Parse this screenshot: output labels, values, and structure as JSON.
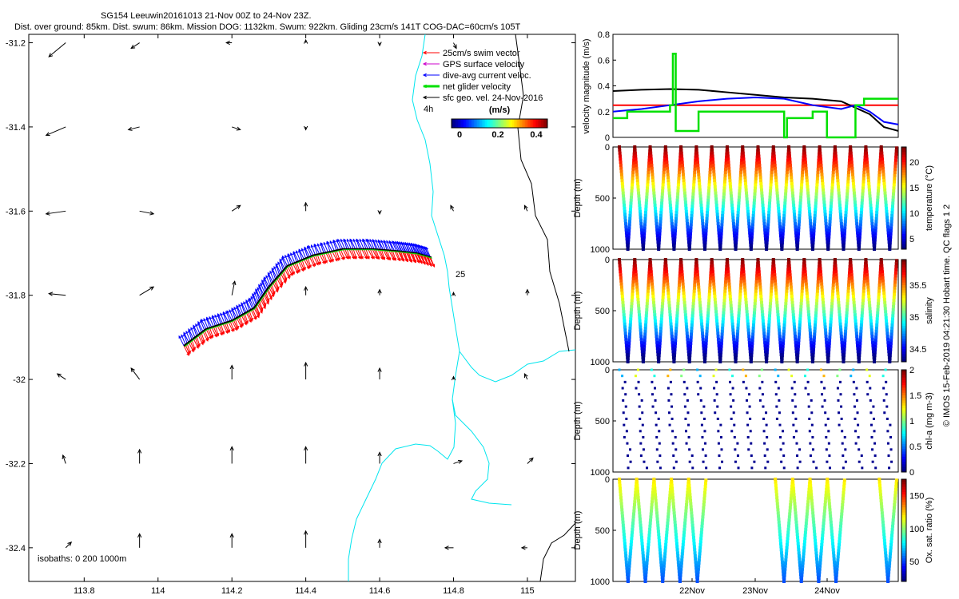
{
  "header": {
    "line1": "SG154 Leeuwin20161013 21-Nov 00Z to 24-Nov 23Z.",
    "line2": "Dist. over ground: 85km. Dist. swum: 86km. Mission DOG: 1132km. Swum: 922km. Gliding 23cm/s 141T COG-DAC=60cm/s 105T"
  },
  "side_note": "© IMOS 15-Feb-2019 04:21:30 Hobart time. QC flags 1  2",
  "colors": {
    "swim": "#ff0000",
    "gps": "#cc00cc",
    "dac": "#0000ff",
    "net": "#00e000",
    "sfc": "#000000",
    "coast": "#00e5ee",
    "isobath": "#000000"
  },
  "chart_data": [
    {
      "type": "map",
      "name": "track-map",
      "xlim": [
        113.65,
        115.13
      ],
      "ylim": [
        -32.48,
        -31.18
      ],
      "xticks": [
        113.8,
        114,
        114.2,
        114.4,
        114.6,
        114.8,
        115
      ],
      "xtick_labels": [
        "113.8",
        "114",
        "114.2",
        "114.4",
        "114.6",
        "114.8",
        "115"
      ],
      "yticks": [
        -31.2,
        -31.4,
        -31.6,
        -31.8,
        -32,
        -32.2,
        -32.4
      ],
      "ytick_labels": [
        "-31.2",
        "-31.4",
        "-31.6",
        "-31.8",
        "-32",
        "-32.2",
        "-32.4"
      ],
      "legend": [
        {
          "label": "25cm/s swim vector",
          "color": "#ff0000"
        },
        {
          "label": "GPS surface velocity",
          "color": "#cc00cc"
        },
        {
          "label": "dive-avg current veloc.",
          "color": "#0000ff"
        },
        {
          "label": "net glider velocity",
          "color": "#00e000"
        },
        {
          "label": "sfc geo. vel. 24-Nov-2016",
          "color": "#000000"
        }
      ],
      "colorbar": {
        "label": "(m/s)",
        "ticks": [
          0,
          0.2,
          0.4
        ],
        "tick_labels": [
          "0",
          "0.2",
          "0.4"
        ],
        "range": [
          0,
          0.5
        ]
      },
      "annotations": [
        "4h",
        "25"
      ],
      "isobath_label": "isobaths: 0   200  1000m",
      "track": [
        [
          114.07,
          -31.92
        ],
        [
          114.13,
          -31.88
        ],
        [
          114.2,
          -31.86
        ],
        [
          114.26,
          -31.83
        ],
        [
          114.3,
          -31.78
        ],
        [
          114.35,
          -31.73
        ],
        [
          114.42,
          -31.705
        ],
        [
          114.5,
          -31.69
        ],
        [
          114.58,
          -31.69
        ],
        [
          114.65,
          -31.695
        ],
        [
          114.7,
          -31.7
        ],
        [
          114.74,
          -31.71
        ]
      ],
      "sfc_arrows": [
        {
          "lon": 113.75,
          "lat": -31.2,
          "u": -0.3,
          "v": -0.25
        },
        {
          "lon": 113.95,
          "lat": -31.2,
          "u": -0.15,
          "v": -0.1
        },
        {
          "lon": 114.2,
          "lat": -31.2,
          "u": -0.1,
          "v": 0.0
        },
        {
          "lon": 114.4,
          "lat": -31.2,
          "u": 0.0,
          "v": 0.05
        },
        {
          "lon": 114.6,
          "lat": -31.2,
          "u": 0.0,
          "v": -0.05
        },
        {
          "lon": 114.8,
          "lat": -31.2,
          "u": 0.05,
          "v": -0.1
        },
        {
          "lon": 113.75,
          "lat": -31.4,
          "u": -0.35,
          "v": -0.15
        },
        {
          "lon": 113.95,
          "lat": -31.4,
          "u": -0.2,
          "v": -0.05
        },
        {
          "lon": 114.2,
          "lat": -31.4,
          "u": 0.15,
          "v": -0.05
        },
        {
          "lon": 114.4,
          "lat": -31.4,
          "u": 0.0,
          "v": -0.05
        },
        {
          "lon": 114.6,
          "lat": -31.4,
          "u": 0.0,
          "v": 0.0
        },
        {
          "lon": 113.75,
          "lat": -31.6,
          "u": -0.35,
          "v": -0.05
        },
        {
          "lon": 113.95,
          "lat": -31.6,
          "u": 0.25,
          "v": -0.05
        },
        {
          "lon": 114.2,
          "lat": -31.6,
          "u": 0.15,
          "v": 0.1
        },
        {
          "lon": 114.4,
          "lat": -31.6,
          "u": 0.0,
          "v": 0.15
        },
        {
          "lon": 114.6,
          "lat": -31.6,
          "u": 0.0,
          "v": -0.05
        },
        {
          "lon": 114.8,
          "lat": -31.6,
          "u": -0.05,
          "v": 0.1
        },
        {
          "lon": 115,
          "lat": -31.6,
          "u": -0.05,
          "v": 0.1
        },
        {
          "lon": 113.75,
          "lat": -31.8,
          "u": -0.3,
          "v": 0.03
        },
        {
          "lon": 113.95,
          "lat": -31.8,
          "u": 0.25,
          "v": 0.15
        },
        {
          "lon": 114.2,
          "lat": -31.8,
          "u": 0.05,
          "v": 0.25
        },
        {
          "lon": 114.4,
          "lat": -31.8,
          "u": 0.0,
          "v": 0.15
        },
        {
          "lon": 114.6,
          "lat": -31.8,
          "u": 0.0,
          "v": 0.1
        },
        {
          "lon": 114.8,
          "lat": -31.8,
          "u": 0.0,
          "v": 0.05
        },
        {
          "lon": 115,
          "lat": -31.8,
          "u": 0.0,
          "v": 0.1
        },
        {
          "lon": 113.75,
          "lat": -32,
          "u": -0.15,
          "v": 0.1
        },
        {
          "lon": 113.95,
          "lat": -32,
          "u": -0.15,
          "v": 0.2
        },
        {
          "lon": 114.2,
          "lat": -32,
          "u": 0.0,
          "v": 0.25
        },
        {
          "lon": 114.4,
          "lat": -32,
          "u": 0.0,
          "v": 0.3
        },
        {
          "lon": 114.6,
          "lat": -32,
          "u": 0.0,
          "v": 0.2
        },
        {
          "lon": 114.8,
          "lat": -32,
          "u": 0.0,
          "v": 0.05
        },
        {
          "lon": 115,
          "lat": -32,
          "u": -0.05,
          "v": 0.1
        },
        {
          "lon": 113.75,
          "lat": -32.2,
          "u": -0.05,
          "v": 0.15
        },
        {
          "lon": 113.95,
          "lat": -32.2,
          "u": 0.0,
          "v": 0.25
        },
        {
          "lon": 114.2,
          "lat": -32.2,
          "u": 0.0,
          "v": 0.3
        },
        {
          "lon": 114.4,
          "lat": -32.2,
          "u": 0.0,
          "v": 0.3
        },
        {
          "lon": 114.6,
          "lat": -32.2,
          "u": 0.0,
          "v": 0.2
        },
        {
          "lon": 114.8,
          "lat": -32.2,
          "u": 0.15,
          "v": 0.05
        },
        {
          "lon": 115,
          "lat": -32.2,
          "u": 0.1,
          "v": 0.1
        },
        {
          "lon": 113.75,
          "lat": -32.4,
          "u": 0.1,
          "v": 0.1
        },
        {
          "lon": 113.95,
          "lat": -32.4,
          "u": 0.0,
          "v": 0.25
        },
        {
          "lon": 114.2,
          "lat": -32.4,
          "u": 0.0,
          "v": 0.25
        },
        {
          "lon": 114.4,
          "lat": -32.4,
          "u": 0.0,
          "v": 0.3
        },
        {
          "lon": 114.6,
          "lat": -32.4,
          "u": 0.0,
          "v": 0.15
        },
        {
          "lon": 114.8,
          "lat": -32.4,
          "u": -0.15,
          "v": 0.0
        },
        {
          "lon": 115,
          "lat": -32.4,
          "u": -0.1,
          "v": 0.0
        }
      ]
    },
    {
      "type": "line",
      "name": "velocity-panel",
      "ylabel": "velocity magnitude (m/s)",
      "xlim": [
        0,
        100
      ],
      "ylim": [
        0,
        0.8
      ],
      "yticks": [
        0,
        0.2,
        0.4,
        0.6,
        0.8
      ],
      "ytick_labels": [
        "0",
        "0.2",
        "0.4",
        "0.6",
        "0.8"
      ],
      "series": [
        {
          "name": "red",
          "color": "#ff0000",
          "x": [
            0,
            100
          ],
          "y": [
            0.25,
            0.25
          ]
        },
        {
          "name": "black",
          "color": "#000000",
          "x": [
            0,
            10,
            20,
            30,
            40,
            50,
            60,
            70,
            80,
            90,
            95,
            100
          ],
          "y": [
            0.36,
            0.37,
            0.375,
            0.37,
            0.35,
            0.33,
            0.31,
            0.3,
            0.28,
            0.18,
            0.08,
            0.05
          ]
        },
        {
          "name": "blue",
          "color": "#0000ff",
          "x": [
            0,
            10,
            20,
            30,
            40,
            50,
            60,
            70,
            80,
            85,
            90,
            95,
            100
          ],
          "y": [
            0.2,
            0.22,
            0.25,
            0.28,
            0.3,
            0.31,
            0.3,
            0.25,
            0.22,
            0.25,
            0.2,
            0.12,
            0.1
          ]
        },
        {
          "name": "green",
          "color": "#00e000",
          "x": [
            0,
            5,
            5,
            20,
            20,
            21,
            21,
            22,
            22,
            30,
            30,
            45,
            45,
            60,
            60,
            61,
            61,
            62,
            62,
            70,
            70,
            75,
            75,
            85,
            85,
            88,
            88,
            100
          ],
          "y": [
            0.15,
            0.15,
            0.2,
            0.2,
            0.25,
            0.25,
            0.65,
            0.65,
            0.05,
            0.05,
            0.2,
            0.2,
            0.2,
            0.2,
            0.0,
            0.0,
            0.15,
            0.15,
            0.15,
            0.15,
            0.2,
            0.2,
            0.0,
            0.0,
            0.25,
            0.25,
            0.3,
            0.3
          ]
        }
      ]
    },
    {
      "type": "scatter",
      "name": "temperature-panel",
      "ylabel": "Depth (m)",
      "cbar_label": "temperature (°C)",
      "ylim": [
        0,
        1000
      ],
      "yticks": [
        0,
        500,
        1000
      ],
      "ytick_labels": [
        "0",
        "500",
        "1000"
      ],
      "cbar_ticks": [
        5,
        10,
        15,
        20
      ],
      "cbar_range": [
        3,
        23
      ],
      "profiles": 18,
      "surface_value": 22,
      "deep_value": 4
    },
    {
      "type": "scatter",
      "name": "salinity-panel",
      "ylabel": "Depth (m)",
      "cbar_label": "salinity",
      "ylim": [
        0,
        1000
      ],
      "yticks": [
        0,
        500,
        1000
      ],
      "ytick_labels": [
        "0",
        "500",
        "1000"
      ],
      "cbar_ticks": [
        34.5,
        35,
        35.5
      ],
      "cbar_range": [
        34.3,
        35.9
      ],
      "profiles": 18
    },
    {
      "type": "scatter",
      "name": "chla-panel",
      "ylabel": "Depth (m)",
      "cbar_label": "chl-a (mg m-3)",
      "ylim": [
        0,
        1000
      ],
      "yticks": [
        0,
        500,
        1000
      ],
      "ytick_labels": [
        "0",
        "500",
        "1000"
      ],
      "cbar_ticks": [
        0,
        0.5,
        1,
        1.5,
        2
      ],
      "cbar_range": [
        0,
        2
      ]
    },
    {
      "type": "scatter",
      "name": "oxygen-panel",
      "ylabel": "Depth (m)",
      "cbar_label": "Ox. sat. ratio (%)",
      "ylim": [
        0,
        1000
      ],
      "yticks": [
        0,
        500,
        1000
      ],
      "ytick_labels": [
        "0",
        "500",
        "1000"
      ],
      "cbar_ticks": [
        50,
        100,
        150
      ],
      "cbar_range": [
        20,
        175
      ],
      "xticks": [
        "22Nov",
        "23Nov",
        "24Nov"
      ]
    }
  ]
}
